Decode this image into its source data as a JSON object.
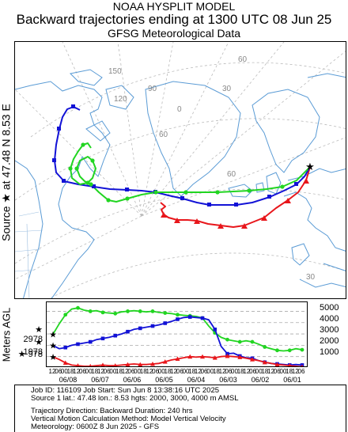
{
  "header": {
    "line1": "NOAA HYSPLIT MODEL",
    "line2": "Backward trajectories ending at 1300 UTC 08 Jun 25",
    "line3": "GFSG Meteorological Data"
  },
  "source_label": "Source ★ at 47.48 N 8.53 E",
  "map": {
    "lon_labels": [
      "150",
      "120",
      "90",
      "60",
      "30",
      "0"
    ],
    "lat_labels": [
      "60",
      "30"
    ],
    "colors": {
      "red": "#e8161b",
      "blue": "#1212d6",
      "green": "#21d521",
      "land": "#5a9bd5"
    }
  },
  "altitude": {
    "axis_label": "Meters AGL",
    "left_ticks": [
      "2978",
      "1978",
      "978"
    ],
    "right_ticks": [
      "5000",
      "4000",
      "3000",
      "2000",
      "1000"
    ],
    "hour_labels": [
      "12",
      "06",
      "00",
      "18",
      "12",
      "06",
      "00",
      "18",
      "12",
      "06",
      "00",
      "18",
      "12",
      "06",
      "00",
      "18",
      "12",
      "06",
      "00",
      "18",
      "12",
      "06",
      "00",
      "18",
      "12",
      "06",
      "00",
      "18",
      "12",
      "06",
      "00",
      "18",
      "12",
      "06",
      "00",
      "18",
      "12",
      "06",
      "00",
      "18",
      "12",
      "06"
    ],
    "date_labels": [
      "06/08",
      "06/07",
      "06/06",
      "06/05",
      "06/04",
      "06/03",
      "06/02",
      "06/01"
    ]
  },
  "chart_data": {
    "type": "line",
    "x_unit": "hours before 1300 UTC 08 Jun 25",
    "ylabel": "Meters AGL",
    "ylim": [
      0,
      5800
    ],
    "series": [
      {
        "color": "#21d521",
        "values": [
          2978,
          3900,
          4700,
          5200,
          5300,
          5100,
          5000,
          5050,
          4900,
          4850,
          4800,
          4950,
          5000,
          5050,
          5000,
          4950,
          5000,
          4900,
          4850,
          4800,
          4700,
          4650,
          4600,
          4550,
          4400,
          3700,
          3100,
          2700,
          2500,
          2400,
          2300,
          2400,
          2300,
          2100,
          1850,
          1700,
          1550,
          1500,
          1550,
          1700,
          1600
        ]
      },
      {
        "color": "#1212d6",
        "values": [
          1978,
          1700,
          1800,
          2000,
          2100,
          2200,
          2300,
          2500,
          2600,
          2700,
          2850,
          3000,
          3200,
          3400,
          3500,
          3600,
          3700,
          3800,
          3950,
          4100,
          4300,
          4450,
          4500,
          4450,
          4400,
          4250,
          3400,
          1900,
          1250,
          1300,
          1050,
          900,
          850,
          650,
          500,
          400,
          350,
          300,
          250,
          300,
          250
        ]
      },
      {
        "color": "#e8161b",
        "values": [
          978,
          750,
          450,
          250,
          200,
          150,
          150,
          200,
          250,
          200,
          200,
          250,
          300,
          350,
          300,
          300,
          350,
          400,
          550,
          700,
          800,
          900,
          1000,
          950,
          1000,
          950,
          900,
          1000,
          1050,
          1000,
          950,
          850,
          750,
          650,
          500,
          400,
          300,
          250,
          200,
          150,
          100
        ]
      }
    ]
  },
  "info": {
    "line1": "Job ID: 116109            Job Start: Sun Jun  8 13:38:16 UTC 2025",
    "line2": "Source 1 lat.: 47.48  lon.: 8.53  hgts: 2000, 3000, 4000 m AMSL",
    "line3": "Trajectory Direction: Backward      Duration: 240 hrs",
    "line4": "Vertical Motion Calculation Method:      Model Vertical Velocity",
    "line5": "Meteorology: 0600Z 8 Jun 2025 - GFS"
  }
}
